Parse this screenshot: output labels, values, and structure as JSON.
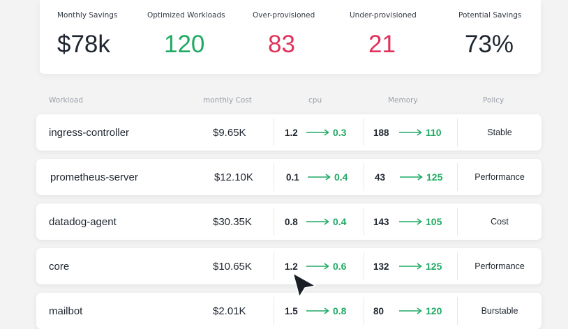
{
  "summary": {
    "stats": [
      {
        "label": "Monthly Savings",
        "value": "$78k",
        "color": "#1f2630"
      },
      {
        "label": "Optimized Workloads",
        "value": "120",
        "color": "#1faa64"
      },
      {
        "label": "Over-provisioned",
        "value": "83",
        "color": "#e0325a"
      },
      {
        "label": "Under-provisioned",
        "value": "21",
        "color": "#e0325a"
      },
      {
        "label": "Potential Savings",
        "value": "73%",
        "color": "#1f2630"
      }
    ]
  },
  "table": {
    "headers": {
      "workload": "Workload",
      "cost": "monthly Cost",
      "cpu": "cpu",
      "memory": "Memory",
      "policy": "Policy"
    },
    "rows": [
      {
        "name": "ingress-controller",
        "cost": "$9.65K",
        "cpu_from": "1.2",
        "cpu_to": "0.3",
        "mem_from": "188",
        "mem_to": "110",
        "policy": "Stable"
      },
      {
        "name": "prometheus-server",
        "cost": "$12.10K",
        "cpu_from": "0.1",
        "cpu_to": "0.4",
        "mem_from": "43",
        "mem_to": "125",
        "policy": "Performance"
      },
      {
        "name": "datadog-agent",
        "cost": "$30.35K",
        "cpu_from": "0.8",
        "cpu_to": "0.4",
        "mem_from": "143",
        "mem_to": "105",
        "policy": "Cost"
      },
      {
        "name": "core",
        "cost": "$10.65K",
        "cpu_from": "1.2",
        "cpu_to": "0.6",
        "mem_from": "132",
        "mem_to": "125",
        "policy": "Performance"
      },
      {
        "name": "mailbot",
        "cost": "$2.01K",
        "cpu_from": "1.5",
        "cpu_to": "0.8",
        "mem_from": "80",
        "mem_to": "120",
        "policy": "Burstable"
      }
    ]
  },
  "icons": {
    "arrow": "arrow-right-icon",
    "cursor": "mouse-cursor-icon"
  },
  "colors": {
    "positive": "#1faa64",
    "negative": "#e0325a"
  }
}
